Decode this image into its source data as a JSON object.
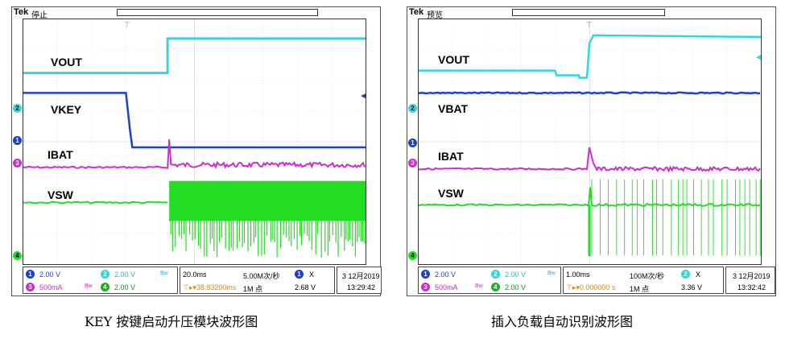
{
  "colors": {
    "ch1": "#1d3fd0",
    "ch2": "#2fd8e0",
    "ch3": "#d02ad0",
    "ch4": "#22dd22",
    "trigger": "#f0a020",
    "grid": "#cfcfcf"
  },
  "left": {
    "brand": "Tek",
    "status": "停止",
    "traces": [
      "VOUT",
      "VKEY",
      "IBAT",
      "VSW"
    ],
    "channels": {
      "ch1_num": "1",
      "ch1_scale": "2.00 V",
      "ch2_num": "2",
      "ch2_scale": "2.00 V",
      "ch3_num": "3",
      "ch3_scale": "500mA",
      "ch4_num": "4",
      "ch4_scale": "2.00 V",
      "bw_mark": "Bw"
    },
    "timebase": "20.0ms",
    "trigger_pos": "38.83200ms",
    "sample_rate": "5.00M次/秒",
    "record_len": "1M 点",
    "trig_src": "1",
    "trig_slope": "X",
    "trig_level": "2.68 V",
    "date": "3 12月2019",
    "time": "13:29:42",
    "caption": "KEY 按键启动升压模块波形图"
  },
  "right": {
    "brand": "Tek",
    "status": "预览",
    "traces": [
      "VOUT",
      "VBAT",
      "IBAT",
      "VSW"
    ],
    "channels": {
      "ch1_num": "1",
      "ch1_scale": "2.00 V",
      "ch2_num": "2",
      "ch2_scale": "2.00 V",
      "ch3_num": "3",
      "ch3_scale": "500mA",
      "ch4_num": "4",
      "ch4_scale": "2.00 V",
      "bw_mark": "Bw"
    },
    "timebase": "1.00ms",
    "trigger_pos": "0.000000 s",
    "sample_rate": "100M次/秒",
    "record_len": "1M 点",
    "trig_src": "2",
    "trig_slope": "X",
    "trig_level": "3.36 V",
    "date": "3 12月2019",
    "time": "13:32:42",
    "caption": "插入负载自动识别波形图"
  }
}
